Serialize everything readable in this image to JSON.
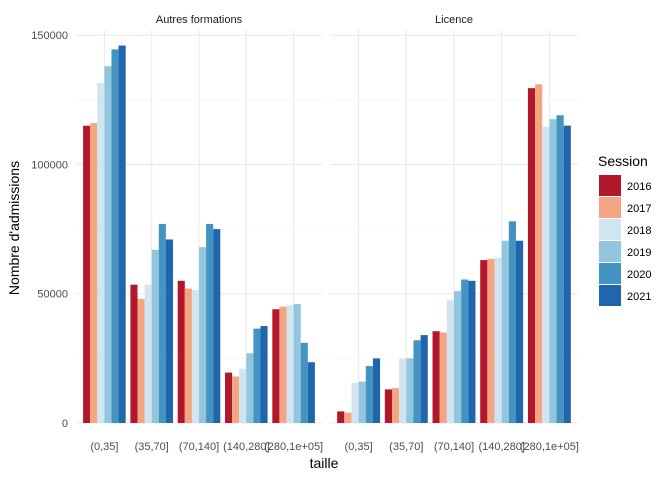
{
  "chart_data": {
    "type": "bar",
    "xlabel": "taille",
    "ylabel": "Nombre d'admissions",
    "ylim": [
      0,
      152000
    ],
    "y_ticks": [
      0,
      50000,
      100000,
      150000
    ],
    "y_tick_labels": [
      "0",
      "50000",
      "100000",
      "150000"
    ],
    "categories": [
      "(0,35]",
      "(35,70]",
      "(70,140]",
      "(140,280]",
      "(280,1e+05]"
    ],
    "legend": {
      "title": "Session",
      "position": "right",
      "entries": [
        {
          "name": "2016",
          "color": "#b2182b"
        },
        {
          "name": "2017",
          "color": "#f4a582"
        },
        {
          "name": "2018",
          "color": "#d1e5f0"
        },
        {
          "name": "2019",
          "color": "#92c5de"
        },
        {
          "name": "2020",
          "color": "#4393c3"
        },
        {
          "name": "2021",
          "color": "#2166ac"
        }
      ]
    },
    "panels": [
      {
        "title": "Autres formations",
        "series": [
          {
            "name": "2016",
            "values": [
              115000,
              53500,
              55000,
              19500,
              44000
            ]
          },
          {
            "name": "2017",
            "values": [
              116000,
              48000,
              52000,
              18000,
              45000
            ]
          },
          {
            "name": "2018",
            "values": [
              131500,
              53500,
              51500,
              21000,
              45500
            ]
          },
          {
            "name": "2019",
            "values": [
              138000,
              67000,
              68000,
              27000,
              46000
            ]
          },
          {
            "name": "2020",
            "values": [
              144500,
              77000,
              77000,
              36500,
              31000
            ]
          },
          {
            "name": "2021",
            "values": [
              146000,
              71000,
              75000,
              37500,
              23500
            ]
          }
        ]
      },
      {
        "title": "Licence",
        "series": [
          {
            "name": "2016",
            "values": [
              4500,
              13000,
              35500,
              63000,
              129500
            ]
          },
          {
            "name": "2017",
            "values": [
              4000,
              13500,
              35000,
              63500,
              131000
            ]
          },
          {
            "name": "2018",
            "values": [
              15500,
              25000,
              47500,
              64000,
              114500
            ]
          },
          {
            "name": "2019",
            "values": [
              16000,
              25000,
              51000,
              70500,
              117500
            ]
          },
          {
            "name": "2020",
            "values": [
              22000,
              32000,
              55500,
              78000,
              119000
            ]
          },
          {
            "name": "2021",
            "values": [
              25000,
              34000,
              55000,
              70500,
              115000
            ]
          }
        ]
      }
    ]
  }
}
